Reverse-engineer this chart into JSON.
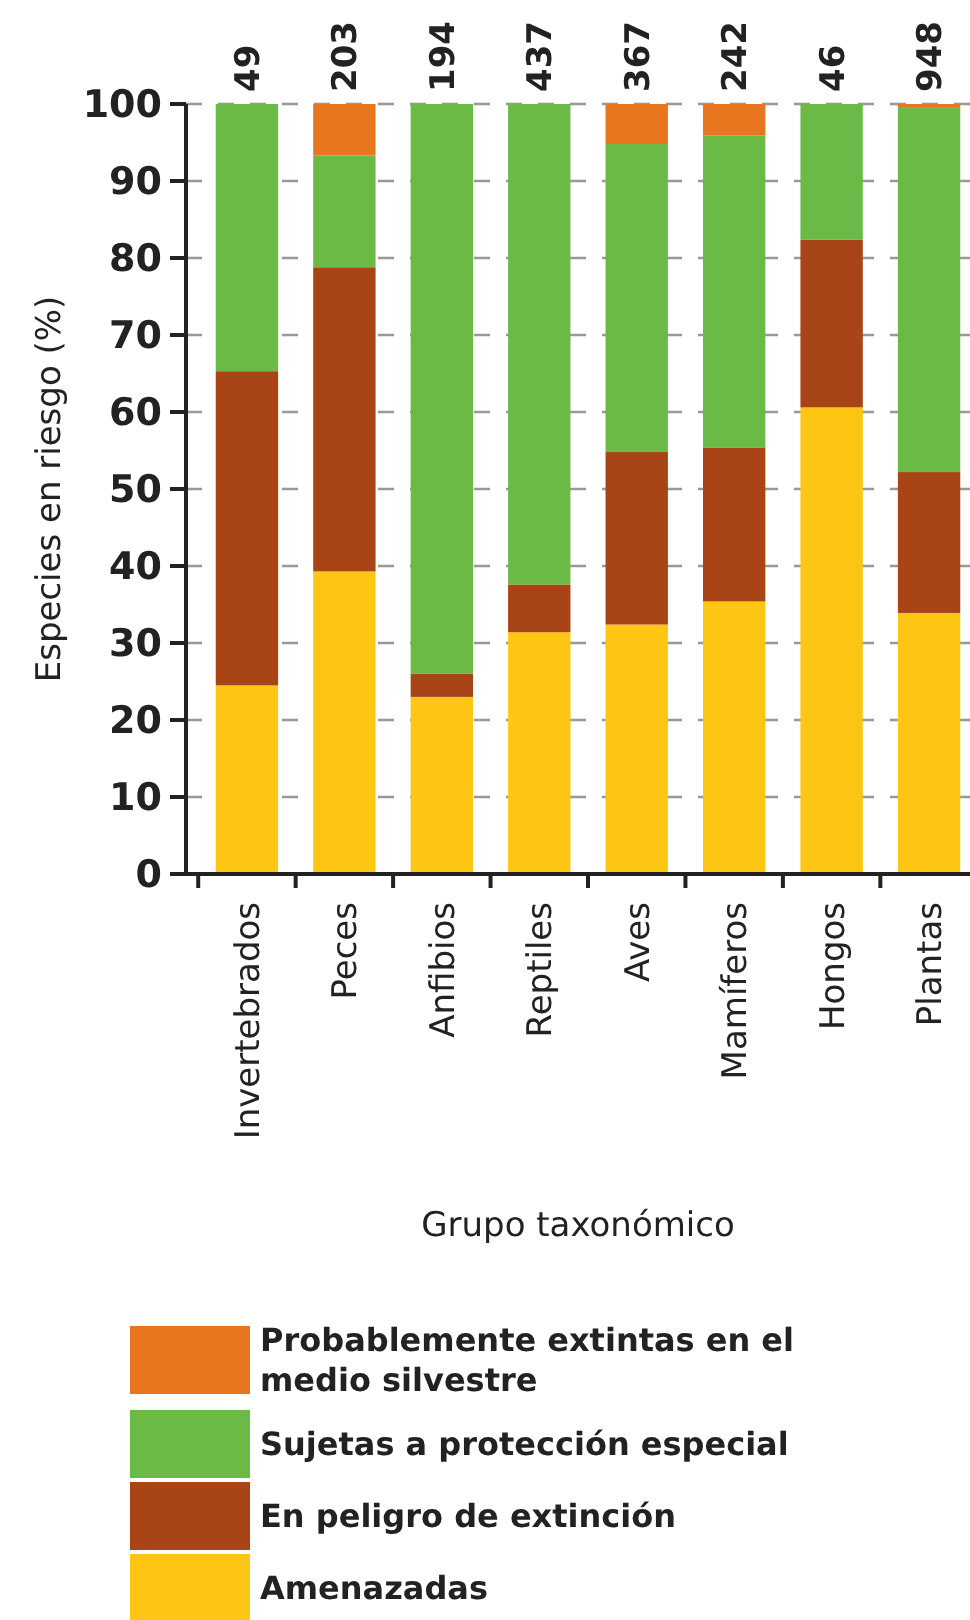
{
  "chart_data": {
    "type": "bar",
    "stacked": true,
    "xlabel": "Grupo taxonómico",
    "ylabel": "Especies en riesgo (%)",
    "categories": [
      "Invertebrados",
      "Peces",
      "Anfibios",
      "Reptiles",
      "Aves",
      "Mamíferos",
      "Hongos",
      "Plantas"
    ],
    "series": [
      {
        "name": "Amenazadas",
        "color": "#fdc514",
        "values": [
          24.5,
          39.3,
          23,
          31.4,
          32.4,
          35.4,
          60.6,
          33.9
        ]
      },
      {
        "name": "En peligro de extinción",
        "color": "#a84415",
        "values": [
          40.8,
          39.5,
          3,
          6.2,
          22.4,
          20,
          21.8,
          18.3
        ]
      },
      {
        "name": "Sujetas a protección especial",
        "color": "#6aba45",
        "values": [
          34.7,
          14.5,
          74,
          62.4,
          40,
          40.5,
          17.6,
          47.4
        ]
      },
      {
        "name": "Probablemente extintas en el medio silvestre",
        "color": "#e8761e",
        "values": [
          0,
          6.7,
          0,
          0,
          5.2,
          4.1,
          0,
          0.4
        ]
      }
    ],
    "annotations": [
      {
        "text": "49",
        "x": "Invertebrados",
        "y": 100
      },
      {
        "text": "203",
        "x": "Peces",
        "y": 100
      },
      {
        "text": "194",
        "x": "Anfibios",
        "y": 100
      },
      {
        "text": "437",
        "x": "Reptiles",
        "y": 100
      },
      {
        "text": "367",
        "x": "Aves",
        "y": 100
      },
      {
        "text": "242",
        "x": "Mamíferos",
        "y": 100
      },
      {
        "text": "46",
        "x": "Hongos",
        "y": 100
      },
      {
        "text": "948",
        "x": "Plantas",
        "y": 100
      }
    ],
    "ylim": [
      0,
      100
    ],
    "yticks": [
      0,
      10,
      20,
      30,
      40,
      50,
      60,
      70,
      80,
      90,
      100
    ],
    "grid": "y",
    "legend": "bottom"
  }
}
